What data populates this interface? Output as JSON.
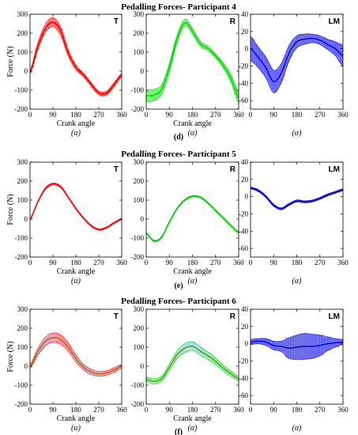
{
  "chart_data": [
    {
      "title": "Pedalling Forces- Participant 4",
      "label": "(d)",
      "panels": [
        {
          "type": "line",
          "corner": "T",
          "ylabel": "Force (N)",
          "xlabel": "Crank angle",
          "alpha": "(α)",
          "xlim": [
            0,
            360
          ],
          "ylim": [
            -200,
            300
          ],
          "xticks": [
            0,
            90,
            180,
            270,
            360
          ],
          "yticks": [
            -200,
            -100,
            0,
            100,
            200,
            300
          ],
          "color": "#ff0000",
          "fill": "#ff8080",
          "marker": true,
          "x": [
            0,
            30,
            60,
            90,
            120,
            150,
            180,
            210,
            240,
            270,
            300,
            330,
            360
          ],
          "y": [
            -5,
            130,
            225,
            258,
            210,
            95,
            20,
            -20,
            -70,
            -115,
            -115,
            -70,
            -20
          ],
          "band": [
            8,
            18,
            22,
            24,
            22,
            16,
            12,
            10,
            10,
            10,
            10,
            10,
            8
          ]
        },
        {
          "type": "line",
          "corner": "R",
          "ylabel": "",
          "xlabel": "Crank angle",
          "alpha": "(α)",
          "xlim": [
            0,
            360
          ],
          "ylim": [
            -200,
            300
          ],
          "xticks": [
            0,
            90,
            180,
            270,
            360
          ],
          "yticks": [
            -200,
            -100,
            0,
            100,
            200,
            300
          ],
          "color": "#00cc00",
          "fill": "#80ff80",
          "marker": false,
          "x": [
            0,
            30,
            60,
            90,
            120,
            150,
            180,
            210,
            240,
            270,
            300,
            330,
            360
          ],
          "y": [
            -130,
            -125,
            -95,
            20,
            170,
            255,
            210,
            145,
            120,
            80,
            30,
            -40,
            -140
          ],
          "band": [
            30,
            30,
            25,
            22,
            20,
            18,
            16,
            14,
            12,
            12,
            14,
            20,
            30
          ]
        },
        {
          "type": "line",
          "corner": "LM",
          "ylabel": "",
          "xlabel": "",
          "alpha": "(α)",
          "xlim": [
            0,
            360
          ],
          "ylim": [
            -70,
            40
          ],
          "xticks": [
            0,
            90,
            180,
            270,
            360
          ],
          "yticks": [
            -60,
            -40,
            -20,
            0,
            20,
            40
          ],
          "color": "#0000cc",
          "fill": "#6060ff",
          "marker": false,
          "x": [
            0,
            30,
            60,
            90,
            120,
            150,
            180,
            210,
            240,
            270,
            300,
            330,
            360
          ],
          "y": [
            0,
            -10,
            -22,
            -38,
            -28,
            -5,
            8,
            11,
            12,
            10,
            5,
            0,
            -8
          ],
          "band": [
            14,
            12,
            12,
            13,
            11,
            9,
            7,
            6,
            5,
            5,
            6,
            8,
            12
          ]
        }
      ]
    },
    {
      "title": "Pedalling Forces- Participant 5",
      "label": "(e)",
      "panels": [
        {
          "type": "line",
          "corner": "T",
          "ylabel": "Force (N)",
          "xlabel": "Crank angle",
          "alpha": "(α)",
          "xlim": [
            0,
            360
          ],
          "ylim": [
            -200,
            300
          ],
          "xticks": [
            0,
            90,
            180,
            270,
            360
          ],
          "yticks": [
            -200,
            -100,
            0,
            100,
            200,
            300
          ],
          "color": "#ff0000",
          "fill": "#ff8080",
          "marker": false,
          "x": [
            0,
            30,
            60,
            90,
            120,
            150,
            180,
            210,
            240,
            270,
            300,
            330,
            360
          ],
          "y": [
            0,
            90,
            160,
            185,
            170,
            115,
            55,
            5,
            -35,
            -55,
            -45,
            -20,
            0
          ],
          "band": [
            4,
            4,
            5,
            5,
            5,
            4,
            4,
            4,
            4,
            4,
            4,
            4,
            4
          ]
        },
        {
          "type": "line",
          "corner": "R",
          "ylabel": "",
          "xlabel": "Crank angle",
          "alpha": "(α)",
          "xlim": [
            0,
            360
          ],
          "ylim": [
            -200,
            300
          ],
          "xticks": [
            0,
            90,
            180,
            270,
            360
          ],
          "yticks": [
            -200,
            -100,
            0,
            100,
            200,
            300
          ],
          "color": "#00cc00",
          "fill": "#80ff80",
          "marker": false,
          "x": [
            0,
            30,
            60,
            90,
            120,
            150,
            180,
            210,
            240,
            270,
            300,
            330,
            360
          ],
          "y": [
            -75,
            -115,
            -95,
            -15,
            55,
            100,
            120,
            115,
            85,
            45,
            5,
            -35,
            -70
          ],
          "band": [
            4,
            4,
            4,
            4,
            4,
            4,
            4,
            4,
            4,
            4,
            4,
            4,
            4
          ]
        },
        {
          "type": "line",
          "corner": "LM",
          "ylabel": "",
          "xlabel": "",
          "alpha": "(α)",
          "xlim": [
            0,
            360
          ],
          "ylim": [
            -70,
            40
          ],
          "xticks": [
            0,
            90,
            180,
            270,
            360
          ],
          "yticks": [
            -60,
            -40,
            -20,
            0,
            20,
            40
          ],
          "color": "#0000cc",
          "fill": "#6060ff",
          "marker": false,
          "x": [
            0,
            30,
            60,
            90,
            120,
            150,
            180,
            210,
            240,
            270,
            300,
            330,
            360
          ],
          "y": [
            10,
            7,
            0,
            -10,
            -14,
            -9,
            -5,
            -6,
            -5,
            -2,
            2,
            5,
            8
          ],
          "band": [
            1.2,
            1.2,
            1.2,
            1.2,
            1.2,
            1.2,
            1.2,
            1.2,
            1.2,
            1.2,
            1.2,
            1.2,
            1.2
          ]
        }
      ]
    },
    {
      "title": "Pedalling Forces- Participant 6",
      "label": "(f)",
      "panels": [
        {
          "type": "line",
          "corner": "T",
          "ylabel": "Force (N)",
          "xlabel": "Crank angle",
          "alpha": "(α)",
          "xlim": [
            0,
            360
          ],
          "ylim": [
            -200,
            300
          ],
          "xticks": [
            0,
            90,
            180,
            270,
            360
          ],
          "yticks": [
            -200,
            -100,
            0,
            100,
            200,
            300
          ],
          "color": "#ff0000",
          "fill": "#ffb0e0",
          "marker": false,
          "mean_color": "#808000",
          "x": [
            0,
            30,
            60,
            90,
            120,
            150,
            180,
            210,
            240,
            270,
            300,
            330,
            360
          ],
          "y": [
            0,
            75,
            130,
            150,
            140,
            100,
            40,
            -5,
            -30,
            -40,
            -35,
            -20,
            0
          ],
          "band": [
            10,
            18,
            22,
            25,
            25,
            22,
            18,
            15,
            14,
            12,
            12,
            12,
            10
          ]
        },
        {
          "type": "line",
          "corner": "R",
          "ylabel": "",
          "xlabel": "Crank angle",
          "alpha": "(α)",
          "xlim": [
            0,
            360
          ],
          "ylim": [
            -200,
            300
          ],
          "xticks": [
            0,
            90,
            180,
            270,
            360
          ],
          "yticks": [
            -200,
            -100,
            0,
            100,
            200,
            300
          ],
          "color": "#00cc00",
          "fill": "#a0ffff",
          "marker": false,
          "mean_color": "#808000",
          "x": [
            0,
            30,
            60,
            90,
            120,
            150,
            180,
            210,
            240,
            270,
            300,
            330,
            360
          ],
          "y": [
            -70,
            -80,
            -65,
            -5,
            60,
            95,
            105,
            80,
            55,
            25,
            -10,
            -40,
            -65
          ],
          "band": [
            12,
            14,
            14,
            16,
            20,
            24,
            24,
            22,
            20,
            18,
            16,
            14,
            12
          ]
        },
        {
          "type": "line",
          "corner": "LM",
          "ylabel": "",
          "xlabel": "",
          "alpha": "(α)",
          "xlim": [
            0,
            360
          ],
          "ylim": [
            -70,
            40
          ],
          "xticks": [
            0,
            90,
            180,
            270,
            360
          ],
          "yticks": [
            -60,
            -40,
            -20,
            0,
            20,
            40
          ],
          "color": "#0000cc",
          "fill": "#6060ff",
          "marker": false,
          "x": [
            0,
            30,
            60,
            90,
            120,
            150,
            180,
            210,
            240,
            270,
            300,
            330,
            360
          ],
          "y": [
            2,
            3,
            2,
            -2,
            -3,
            -5,
            -4,
            -3,
            -3,
            -2,
            0,
            1,
            2
          ],
          "band": [
            3,
            3,
            4,
            5,
            6,
            12,
            14,
            15,
            14,
            12,
            8,
            5,
            3
          ]
        }
      ]
    }
  ]
}
